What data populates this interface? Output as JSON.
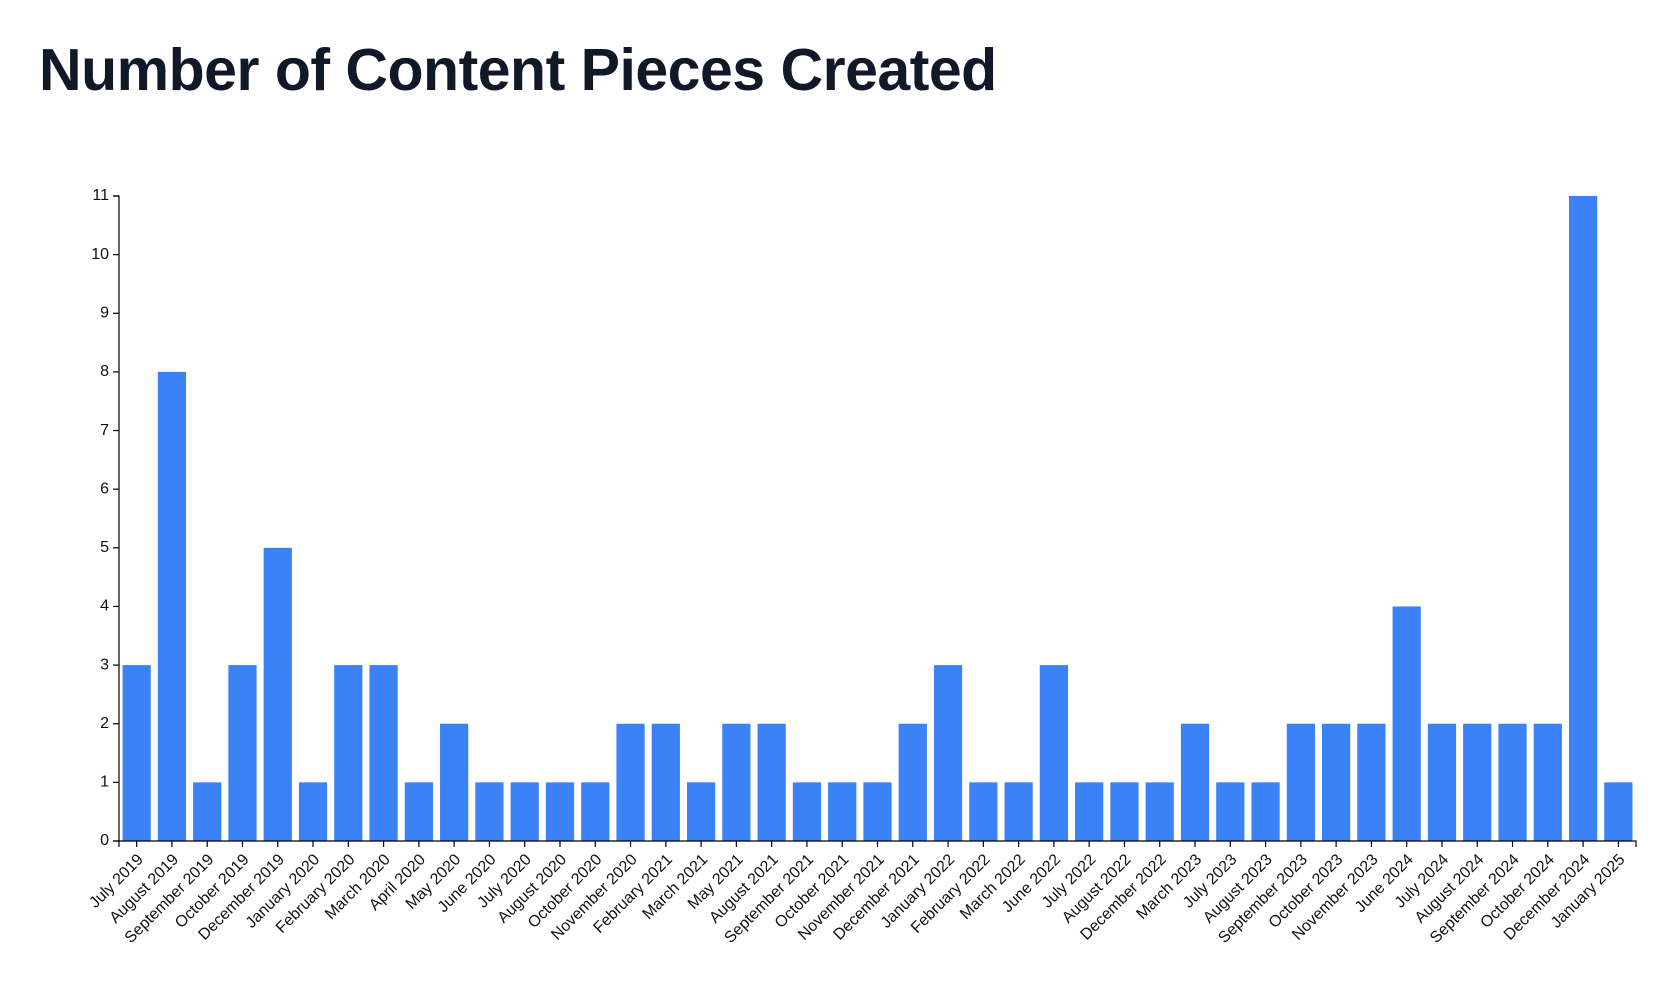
{
  "title": "Number of Content Pieces Created",
  "colors": {
    "bar": "#3b82f6",
    "title": "#111827",
    "axis": "#000000"
  },
  "chart_data": {
    "type": "bar",
    "title": "Number of Content Pieces Created",
    "xlabel": "",
    "ylabel": "",
    "ylim": [
      0,
      11
    ],
    "yticks": [
      0,
      1,
      2,
      3,
      4,
      5,
      6,
      7,
      8,
      9,
      10,
      11
    ],
    "grid": false,
    "legend": "none",
    "categories": [
      "July 2019",
      "August 2019",
      "September 2019",
      "October 2019",
      "December 2019",
      "January 2020",
      "February 2020",
      "March 2020",
      "April 2020",
      "May 2020",
      "June 2020",
      "July 2020",
      "August 2020",
      "October 2020",
      "November 2020",
      "February 2021",
      "March 2021",
      "May 2021",
      "August 2021",
      "September 2021",
      "October 2021",
      "November 2021",
      "December 2021",
      "January 2022",
      "February 2022",
      "March 2022",
      "June 2022",
      "July 2022",
      "August 2022",
      "December 2022",
      "March 2023",
      "July 2023",
      "August 2023",
      "September 2023",
      "October 2023",
      "November 2023",
      "June 2024",
      "July 2024",
      "August 2024",
      "September 2024",
      "October 2024",
      "December 2024",
      "January 2025"
    ],
    "values": [
      3,
      8,
      1,
      3,
      5,
      1,
      3,
      3,
      1,
      2,
      1,
      1,
      1,
      1,
      2,
      2,
      1,
      2,
      2,
      1,
      1,
      1,
      2,
      3,
      1,
      1,
      3,
      1,
      1,
      1,
      2,
      1,
      1,
      2,
      2,
      2,
      4,
      2,
      2,
      2,
      2,
      11,
      1
    ]
  }
}
